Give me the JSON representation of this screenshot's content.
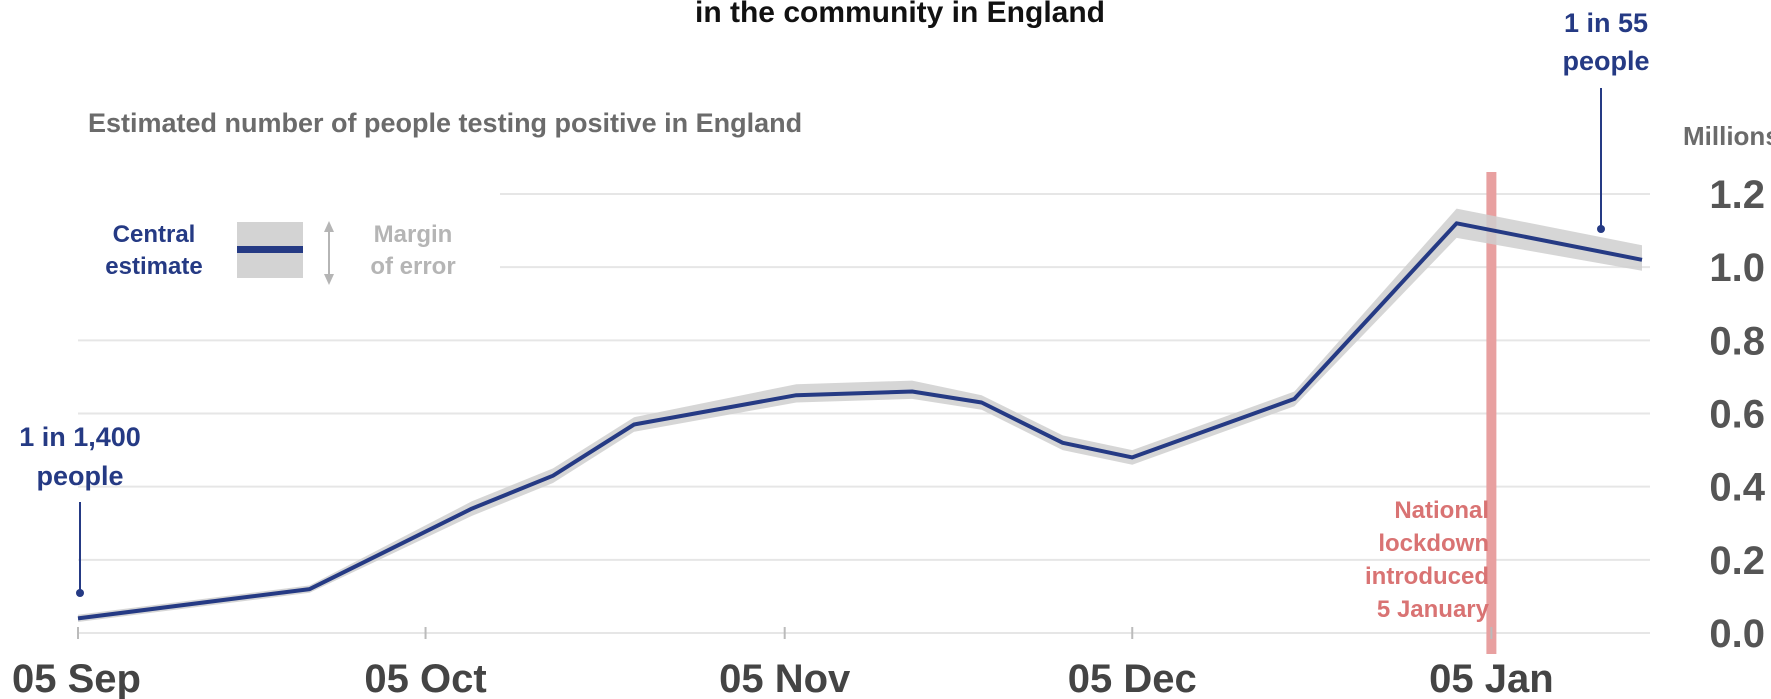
{
  "chart_data": {
    "type": "line",
    "title_lines": [
      "in the community in England"
    ],
    "subtitle": "Estimated number of people testing positive in England",
    "unit_label": "Millions",
    "ylim": [
      0.0,
      1.2
    ],
    "y_ticks": [
      "0.0",
      "0.2",
      "0.4",
      "0.6",
      "0.8",
      "1.0",
      "1.2"
    ],
    "y_tick_values": [
      0.0,
      0.2,
      0.4,
      0.6,
      0.8,
      1.0,
      1.2
    ],
    "x_range": [
      "2020-09-05",
      "2021-01-18"
    ],
    "x_ticks": [
      {
        "date": "2020-09-05",
        "label": "05 Sep"
      },
      {
        "date": "2020-10-05",
        "label": "05 Oct"
      },
      {
        "date": "2020-11-05",
        "label": "05 Nov"
      },
      {
        "date": "2020-12-05",
        "label": "05 Dec"
      },
      {
        "date": "2021-01-05",
        "label": "05 Jan"
      }
    ],
    "series": [
      {
        "points": [
          {
            "x": "2020-09-05",
            "y": 0.04,
            "lo": 0.03,
            "hi": 0.05
          },
          {
            "x": "2020-09-20",
            "y": 0.1,
            "lo": 0.09,
            "hi": 0.11
          },
          {
            "x": "2020-09-25",
            "y": 0.12,
            "lo": 0.11,
            "hi": 0.13
          },
          {
            "x": "2020-10-09",
            "y": 0.34,
            "lo": 0.32,
            "hi": 0.36
          },
          {
            "x": "2020-10-16",
            "y": 0.43,
            "lo": 0.41,
            "hi": 0.45
          },
          {
            "x": "2020-10-23",
            "y": 0.57,
            "lo": 0.55,
            "hi": 0.59
          },
          {
            "x": "2020-11-06",
            "y": 0.65,
            "lo": 0.63,
            "hi": 0.68
          },
          {
            "x": "2020-11-16",
            "y": 0.66,
            "lo": 0.64,
            "hi": 0.69
          },
          {
            "x": "2020-11-22",
            "y": 0.63,
            "lo": 0.61,
            "hi": 0.65
          },
          {
            "x": "2020-11-29",
            "y": 0.52,
            "lo": 0.5,
            "hi": 0.54
          },
          {
            "x": "2020-12-05",
            "y": 0.48,
            "lo": 0.46,
            "hi": 0.5
          },
          {
            "x": "2020-12-19",
            "y": 0.64,
            "lo": 0.62,
            "hi": 0.66
          },
          {
            "x": "2021-01-02",
            "y": 1.12,
            "lo": 1.08,
            "hi": 1.16
          },
          {
            "x": "2021-01-18",
            "y": 1.02,
            "lo": 0.99,
            "hi": 1.06
          }
        ]
      }
    ],
    "legend": {
      "line_label": [
        "Central",
        "estimate"
      ],
      "band_label": [
        "Margin",
        "of error"
      ]
    },
    "annotations": {
      "start": {
        "lines": [
          "1 in 1,400",
          "people"
        ],
        "x": "2020-09-05"
      },
      "end": {
        "lines": [
          "1 in 55",
          "people"
        ],
        "x": "2021-01-18"
      },
      "lockdown": {
        "x": "2021-01-05",
        "lines": [
          "National",
          "lockdown",
          "introduced",
          "5 January"
        ]
      }
    },
    "grid": true,
    "colors": {
      "line": "#253a84",
      "band": "#cfcfcf",
      "lockdown": "#e8a0a0",
      "grid": "#e6e6e6"
    }
  }
}
